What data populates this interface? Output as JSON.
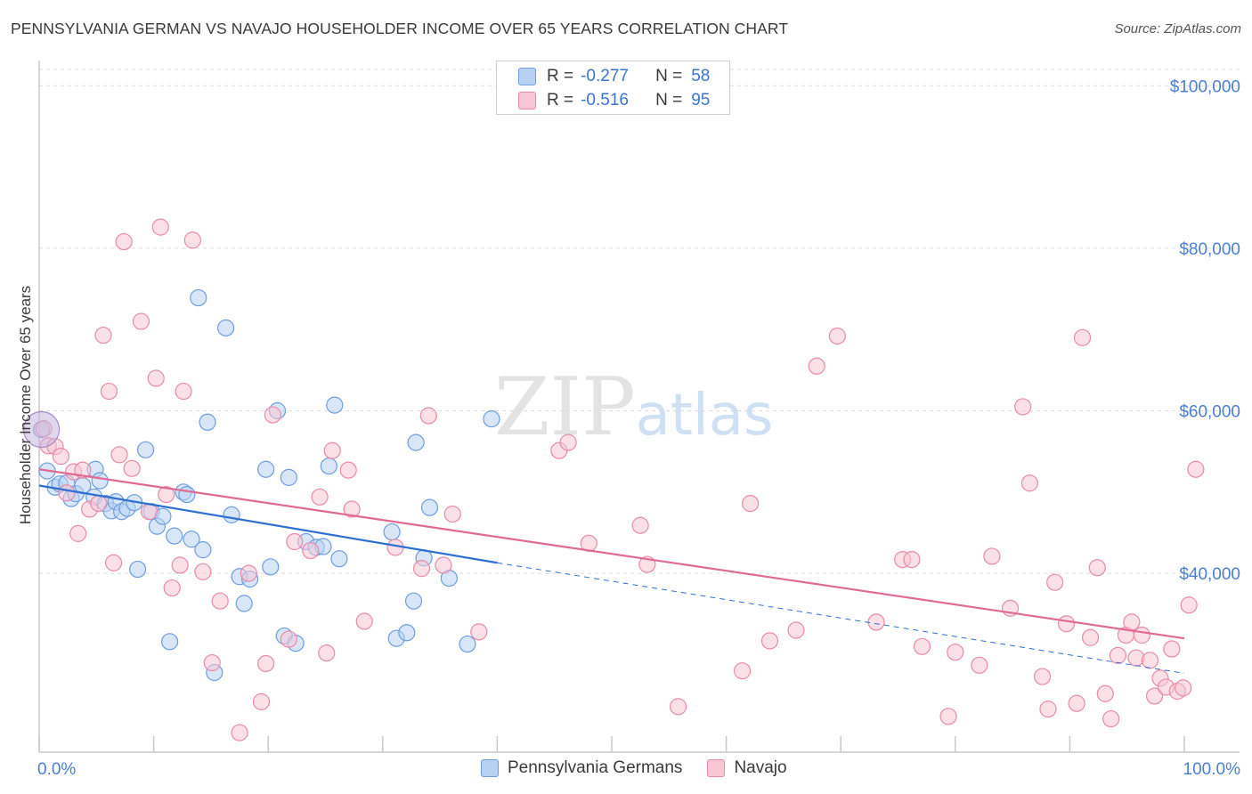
{
  "title": "PENNSYLVANIA GERMAN VS NAVAJO HOUSEHOLDER INCOME OVER 65 YEARS CORRELATION CHART",
  "source": "Source: ZipAtlas.com",
  "watermark": {
    "zip": "ZIP",
    "atlas": "atlas"
  },
  "legend": {
    "rows": [
      {
        "r_label": "R =",
        "r_value": "-0.277",
        "n_label": "N =",
        "n_value": "58",
        "fill": "#b8d1f3",
        "stroke": "#6d9de0"
      },
      {
        "r_label": "R =",
        "r_value": "-0.516",
        "n_label": "N =",
        "n_value": "95",
        "fill": "#f8c6d5",
        "stroke": "#e98aa8"
      }
    ]
  },
  "bottom_legend": [
    {
      "label": "Pennsylvania Germans",
      "fill": "#b8d1f3",
      "stroke": "#6d9de0"
    },
    {
      "label": "Navajo",
      "fill": "#f8c6d5",
      "stroke": "#e98aa8"
    }
  ],
  "chart_data": {
    "type": "scatter",
    "ylabel": "Householder Income Over 65 years",
    "x_tick_labels": [
      "0.0%",
      "100.0%"
    ],
    "y_ticks": [
      {
        "value": 40000,
        "label": "$40,000"
      },
      {
        "value": 60000,
        "label": "$60,000"
      },
      {
        "value": 80000,
        "label": "$80,000"
      },
      {
        "value": 100000,
        "label": "$100,000"
      }
    ],
    "xlim": [
      0,
      100
    ],
    "ylim": [
      18000,
      102000
    ],
    "grid": "horizontal dashed",
    "series": [
      {
        "name": "Pennsylvania Germans",
        "color": "#6d9de0",
        "fill": "#b8d1f3",
        "trend": {
          "x0": 0,
          "y0": 50800,
          "x1": 40,
          "y1": 41300,
          "dash_to_x": 100,
          "dash_to_y": 27700,
          "line_color": "#2f6fd1"
        },
        "points": [
          [
            0.2,
            57700
          ],
          [
            0.7,
            52600
          ],
          [
            1.4,
            50600
          ],
          [
            1.8,
            51000
          ],
          [
            2.4,
            51100
          ],
          [
            2.8,
            49200
          ],
          [
            3.2,
            49800
          ],
          [
            3.8,
            50800
          ],
          [
            4.8,
            49400
          ],
          [
            4.9,
            52800
          ],
          [
            5.3,
            51400
          ],
          [
            5.8,
            48600
          ],
          [
            6.3,
            47700
          ],
          [
            6.7,
            48800
          ],
          [
            7.2,
            47600
          ],
          [
            7.7,
            48000
          ],
          [
            8.3,
            48700
          ],
          [
            8.6,
            40500
          ],
          [
            9.3,
            55200
          ],
          [
            9.8,
            47600
          ],
          [
            10.3,
            45800
          ],
          [
            10.8,
            47000
          ],
          [
            11.4,
            31600
          ],
          [
            11.8,
            44600
          ],
          [
            12.6,
            50000
          ],
          [
            12.9,
            49700
          ],
          [
            13.3,
            44200
          ],
          [
            13.9,
            73900
          ],
          [
            14.3,
            42900
          ],
          [
            14.7,
            58600
          ],
          [
            15.3,
            27800
          ],
          [
            16.3,
            70200
          ],
          [
            16.8,
            47200
          ],
          [
            17.5,
            39600
          ],
          [
            17.9,
            36300
          ],
          [
            18.4,
            39300
          ],
          [
            19.8,
            52800
          ],
          [
            20.2,
            40800
          ],
          [
            20.8,
            60000
          ],
          [
            21.4,
            32300
          ],
          [
            21.8,
            51800
          ],
          [
            22.4,
            31400
          ],
          [
            23.3,
            43900
          ],
          [
            24.2,
            43200
          ],
          [
            24.8,
            43300
          ],
          [
            25.3,
            53200
          ],
          [
            25.8,
            60700
          ],
          [
            26.2,
            41800
          ],
          [
            30.8,
            45100
          ],
          [
            31.2,
            32000
          ],
          [
            32.1,
            32700
          ],
          [
            32.7,
            36600
          ],
          [
            32.9,
            56100
          ],
          [
            33.6,
            41900
          ],
          [
            34.1,
            48100
          ],
          [
            35.8,
            39400
          ],
          [
            37.4,
            31300
          ],
          [
            39.5,
            59000
          ]
        ]
      },
      {
        "name": "Navajo",
        "color": "#e98aa8",
        "fill": "#f8c6d5",
        "trend": {
          "x0": 0,
          "y0": 52800,
          "x1": 100,
          "y1": 32000,
          "line_color": "#e06a93"
        },
        "points": [
          [
            0.4,
            57800
          ],
          [
            0.8,
            55700
          ],
          [
            1.4,
            55600
          ],
          [
            1.9,
            54400
          ],
          [
            2.4,
            49900
          ],
          [
            3.0,
            52500
          ],
          [
            3.4,
            44900
          ],
          [
            3.8,
            52700
          ],
          [
            4.4,
            47900
          ],
          [
            5.2,
            48600
          ],
          [
            5.6,
            69300
          ],
          [
            6.1,
            62400
          ],
          [
            6.5,
            41300
          ],
          [
            7.0,
            54600
          ],
          [
            7.4,
            80800
          ],
          [
            8.1,
            52900
          ],
          [
            8.9,
            71000
          ],
          [
            9.6,
            47600
          ],
          [
            10.2,
            64000
          ],
          [
            10.6,
            82600
          ],
          [
            11.1,
            49700
          ],
          [
            11.6,
            38200
          ],
          [
            12.3,
            41000
          ],
          [
            12.6,
            62400
          ],
          [
            13.4,
            81000
          ],
          [
            14.3,
            40200
          ],
          [
            15.1,
            29000
          ],
          [
            15.8,
            36600
          ],
          [
            17.5,
            20400
          ],
          [
            18.3,
            40000
          ],
          [
            19.4,
            24200
          ],
          [
            19.8,
            28900
          ],
          [
            20.4,
            59500
          ],
          [
            21.8,
            31900
          ],
          [
            22.3,
            43900
          ],
          [
            23.7,
            42800
          ],
          [
            24.5,
            49400
          ],
          [
            25.1,
            30200
          ],
          [
            25.6,
            55100
          ],
          [
            27.0,
            52700
          ],
          [
            27.3,
            47900
          ],
          [
            28.4,
            34100
          ],
          [
            31.1,
            43200
          ],
          [
            33.4,
            40600
          ],
          [
            34.0,
            59400
          ],
          [
            35.3,
            41000
          ],
          [
            36.1,
            47300
          ],
          [
            38.4,
            32800
          ],
          [
            45.4,
            55100
          ],
          [
            46.2,
            56100
          ],
          [
            48.0,
            43700
          ],
          [
            52.5,
            45900
          ],
          [
            53.1,
            41100
          ],
          [
            55.8,
            23600
          ],
          [
            61.4,
            28000
          ],
          [
            62.1,
            48600
          ],
          [
            63.8,
            31700
          ],
          [
            66.1,
            33000
          ],
          [
            67.9,
            65500
          ],
          [
            69.7,
            69200
          ],
          [
            73.1,
            34000
          ],
          [
            75.4,
            41700
          ],
          [
            76.2,
            41700
          ],
          [
            77.1,
            31000
          ],
          [
            79.4,
            22400
          ],
          [
            80.0,
            30300
          ],
          [
            82.1,
            28700
          ],
          [
            83.2,
            42100
          ],
          [
            84.8,
            35700
          ],
          [
            85.9,
            60500
          ],
          [
            86.5,
            51100
          ],
          [
            87.6,
            27300
          ],
          [
            88.1,
            23300
          ],
          [
            88.7,
            38900
          ],
          [
            89.7,
            33800
          ],
          [
            90.6,
            24000
          ],
          [
            91.1,
            69000
          ],
          [
            91.8,
            32100
          ],
          [
            92.4,
            40700
          ],
          [
            93.1,
            25200
          ],
          [
            93.6,
            22100
          ],
          [
            94.2,
            29900
          ],
          [
            94.9,
            32400
          ],
          [
            95.4,
            34000
          ],
          [
            95.8,
            29600
          ],
          [
            96.3,
            32400
          ],
          [
            97.0,
            29300
          ],
          [
            97.4,
            24900
          ],
          [
            97.9,
            27100
          ],
          [
            98.4,
            26000
          ],
          [
            98.9,
            30700
          ],
          [
            99.4,
            25500
          ],
          [
            99.9,
            25900
          ],
          [
            100.4,
            36100
          ],
          [
            101.0,
            52800
          ]
        ]
      }
    ]
  }
}
